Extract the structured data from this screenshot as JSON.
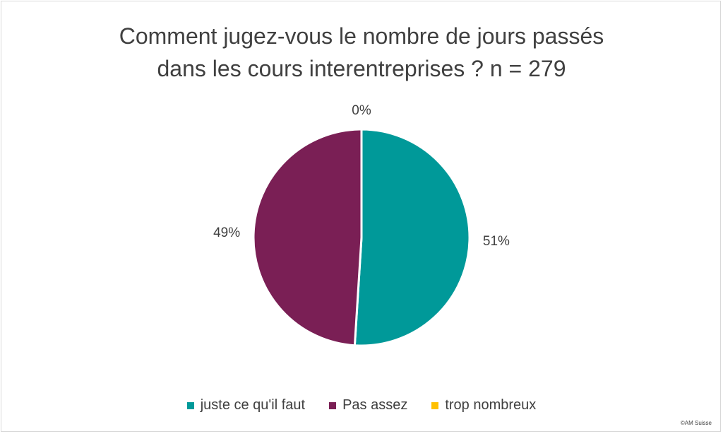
{
  "chart_data": {
    "type": "pie",
    "title_lines": [
      "Comment jugez-vous le nombre de jours passés",
      "dans les cours interentreprises ? n = 279"
    ],
    "categories": [
      "juste ce qu'il faut",
      "Pas assez",
      "trop nombreux"
    ],
    "values": [
      51,
      49,
      0
    ],
    "labels": [
      "51%",
      "49%",
      "0%"
    ],
    "colors": [
      "#009999",
      "#7a1f55",
      "#ffc000"
    ],
    "legend_position": "bottom"
  },
  "footer": {
    "copyright": "©AM Suisse"
  }
}
